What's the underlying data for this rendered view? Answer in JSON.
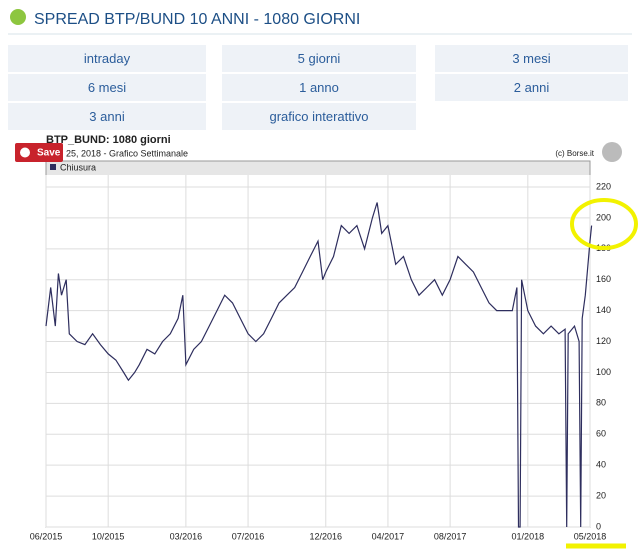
{
  "header": {
    "title": "SPREAD BTP/BUND 10 ANNI - 1080 GIORNI"
  },
  "buttons": [
    "intraday",
    "5 giorni",
    "3 mesi",
    "6 mesi",
    "1 anno",
    "2 anni",
    "3 anni",
    "grafico interattivo"
  ],
  "save": "Save",
  "chart_data": {
    "type": "line",
    "title": "BTP_BUND: 1080 giorni",
    "subtitle": "25, 2018 - Grafico Settimanale",
    "source": "(c) Borse.it",
    "x": [
      0,
      0.3,
      0.6,
      0.8,
      1,
      1.3,
      1.5,
      2,
      2.5,
      3,
      3.5,
      4,
      4.5,
      5,
      5.3,
      5.7,
      6,
      6.5,
      7,
      7.5,
      8,
      8.5,
      8.8,
      9,
      9.5,
      10,
      10.5,
      11,
      11.5,
      12,
      12.5,
      13,
      13.5,
      14,
      14.5,
      15,
      15.5,
      16,
      16.5,
      17,
      17.5,
      17.8,
      18,
      18.5,
      19,
      19.5,
      20,
      20.5,
      21,
      21.3,
      21.6,
      22,
      22.5,
      23,
      23.5,
      24,
      24.5,
      25,
      25.5,
      26,
      26.5,
      27,
      27.5,
      28,
      28.5,
      29,
      29.5,
      30,
      30.3,
      30.4,
      30.5,
      30.6,
      31,
      31.5,
      32,
      32.5,
      33,
      33.4,
      33.5,
      33.6,
      34,
      34.3,
      34.4,
      34.5,
      34.7,
      35,
      35.1
    ],
    "series": [
      {
        "name": "Chiusura",
        "color": "#2e2e5e",
        "values": [
          130,
          155,
          130,
          164,
          150,
          160,
          125,
          120,
          118,
          125,
          118,
          112,
          108,
          100,
          95,
          100,
          105,
          115,
          112,
          120,
          125,
          135,
          150,
          105,
          115,
          120,
          130,
          140,
          150,
          145,
          135,
          125,
          120,
          125,
          135,
          145,
          150,
          155,
          165,
          175,
          185,
          160,
          165,
          175,
          195,
          190,
          195,
          180,
          200,
          210,
          190,
          195,
          170,
          175,
          160,
          150,
          155,
          160,
          150,
          160,
          175,
          170,
          165,
          155,
          145,
          140,
          140,
          140,
          155,
          0,
          0,
          160,
          140,
          130,
          125,
          130,
          125,
          128,
          0,
          125,
          130,
          120,
          0,
          135,
          150,
          185,
          195
        ]
      }
    ],
    "xlim": [
      0,
      35
    ],
    "xticks": [
      {
        "value": 0,
        "label": "06/2015"
      },
      {
        "value": 4,
        "label": "10/2015"
      },
      {
        "value": 9,
        "label": "03/2016"
      },
      {
        "value": 13,
        "label": "07/2016"
      },
      {
        "value": 18,
        "label": "12/2016"
      },
      {
        "value": 22,
        "label": "04/2017"
      },
      {
        "value": 26,
        "label": "08/2017"
      },
      {
        "value": 31,
        "label": "01/2018"
      },
      {
        "value": 35,
        "label": "05/2018"
      }
    ],
    "ylim": [
      0,
      220
    ],
    "yticks": [
      0,
      20,
      40,
      60,
      80,
      100,
      120,
      140,
      160,
      180,
      200,
      220
    ],
    "grid": true
  }
}
